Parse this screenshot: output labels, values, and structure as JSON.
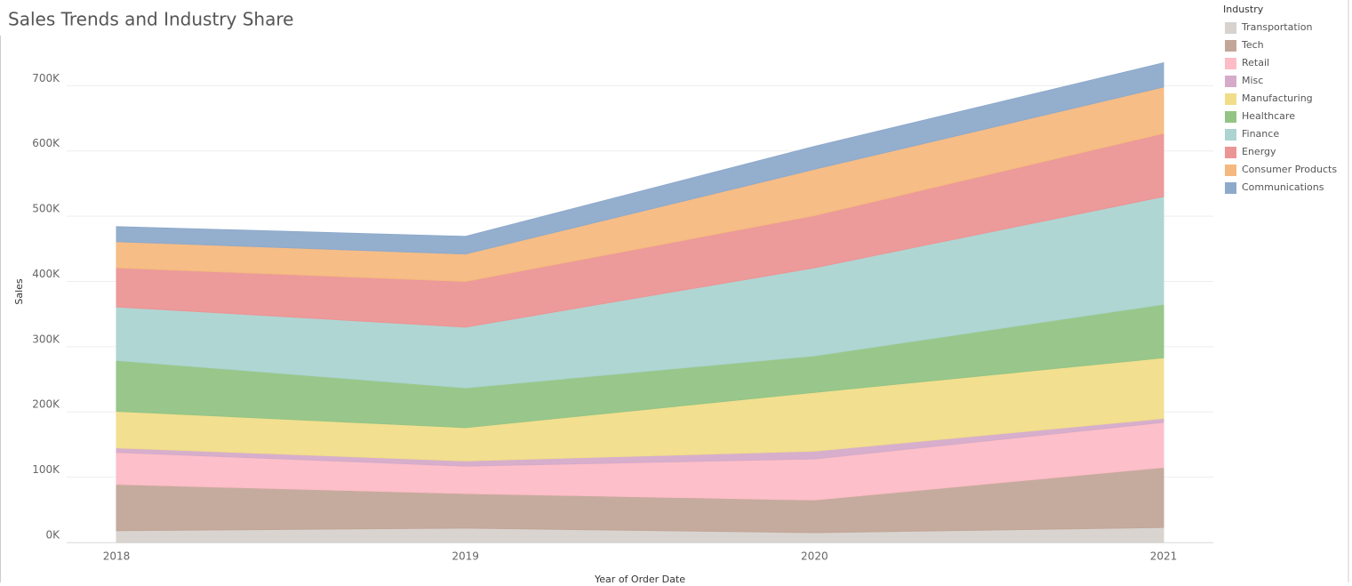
{
  "chart_data": {
    "type": "stacked_area",
    "title": "Sales Trends and Industry Share",
    "x_label": "Year of Order Date",
    "y_label": "Sales",
    "legend_title": "Industry",
    "legend_position": "right",
    "grid": true,
    "categories": [
      "2018",
      "2019",
      "2020",
      "2021"
    ],
    "ylim": [
      0,
      770000
    ],
    "yticks": [
      {
        "value": 0,
        "label": "0K"
      },
      {
        "value": 100000,
        "label": "100K"
      },
      {
        "value": 200000,
        "label": "200K"
      },
      {
        "value": 300000,
        "label": "300K"
      },
      {
        "value": 400000,
        "label": "400K"
      },
      {
        "value": 500000,
        "label": "500K"
      },
      {
        "value": 600000,
        "label": "600K"
      },
      {
        "value": 700000,
        "label": "700K"
      }
    ],
    "series": [
      {
        "name": "Transportation",
        "color": "#d7d2ce",
        "values": [
          18000,
          22000,
          15000,
          23000
        ]
      },
      {
        "name": "Tech",
        "color": "#c2a698",
        "values": [
          71000,
          53000,
          50000,
          92000
        ]
      },
      {
        "name": "Retail",
        "color": "#fdbcc6",
        "values": [
          49000,
          42000,
          63000,
          69000
        ]
      },
      {
        "name": "Misc",
        "color": "#d5abc9",
        "values": [
          7000,
          8000,
          12000,
          6000
        ]
      },
      {
        "name": "Manufacturing",
        "color": "#f1dd8a",
        "values": [
          56000,
          51000,
          90000,
          93000
        ]
      },
      {
        "name": "Healthcare",
        "color": "#93c485",
        "values": [
          78000,
          61000,
          56000,
          82000
        ]
      },
      {
        "name": "Finance",
        "color": "#acd4d1",
        "values": [
          82000,
          93000,
          135000,
          165000
        ]
      },
      {
        "name": "Energy",
        "color": "#eb9595",
        "values": [
          60000,
          70000,
          80000,
          97000
        ]
      },
      {
        "name": "Consumer Products",
        "color": "#f5b97f",
        "values": [
          40000,
          42000,
          71000,
          71000
        ]
      },
      {
        "name": "Communications",
        "color": "#8eaacb",
        "values": [
          23000,
          27000,
          35000,
          37000
        ]
      }
    ]
  }
}
